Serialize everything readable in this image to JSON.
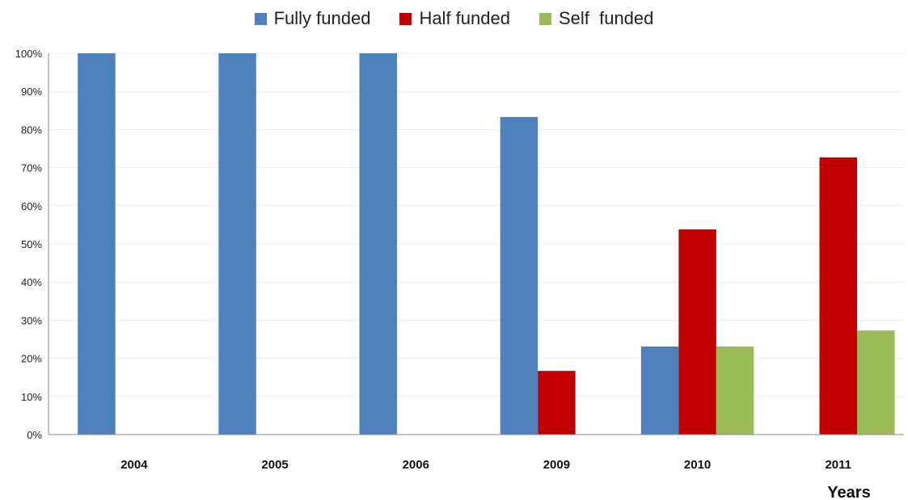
{
  "chart_data": {
    "type": "bar",
    "categories": [
      "2004",
      "2005",
      "2006",
      "2009",
      "2010",
      "2011"
    ],
    "series": [
      {
        "name": "Fully funded",
        "color": "#4F81BD",
        "values": [
          100,
          100,
          100,
          83.3,
          23.1,
          0
        ]
      },
      {
        "name": "Half funded",
        "color": "#C00000",
        "values": [
          0,
          0,
          0,
          16.7,
          53.8,
          72.7
        ]
      },
      {
        "name": "Self  funded",
        "color": "#9BBB59",
        "values": [
          0,
          0,
          0,
          0,
          23.1,
          27.3
        ]
      }
    ],
    "xlabel": "Years",
    "ylabel": "",
    "ylim": [
      0,
      100
    ],
    "yticks": [
      "0%",
      "10%",
      "20%",
      "30%",
      "40%",
      "50%",
      "60%",
      "70%",
      "80%",
      "90%",
      "100%"
    ],
    "legend_position": "top",
    "grid": true
  }
}
